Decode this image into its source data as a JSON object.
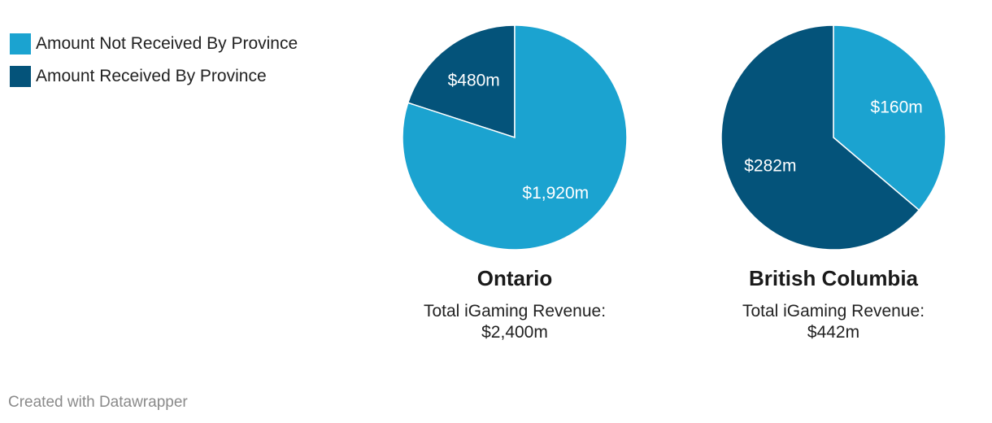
{
  "colors": {
    "not_received": "#1ba3d0",
    "received": "#04537a"
  },
  "legend": {
    "items": [
      {
        "label": "Amount Not Received By Province",
        "color": "#1ba3d0"
      },
      {
        "label": "Amount Received By Province",
        "color": "#04537a"
      }
    ]
  },
  "chart_data": [
    {
      "type": "pie",
      "title": "Ontario",
      "subtitle_line1": "Total iGaming Revenue:",
      "subtitle_line2": "$2,400m",
      "slices": [
        {
          "name": "Amount Received By Province",
          "value": 480,
          "label": "$480m",
          "color": "#04537a"
        },
        {
          "name": "Amount Not Received By Province",
          "value": 1920,
          "label": "$1,920m",
          "color": "#1ba3d0"
        }
      ]
    },
    {
      "type": "pie",
      "title": "British Columbia",
      "subtitle_line1": "Total iGaming Revenue:",
      "subtitle_line2": "$442m",
      "slices": [
        {
          "name": "Amount Not Received By Province",
          "value": 160,
          "label": "$160m",
          "color": "#1ba3d0"
        },
        {
          "name": "Amount Received By Province",
          "value": 282,
          "label": "$282m",
          "color": "#04537a"
        }
      ]
    }
  ],
  "footer": {
    "credit": "Created with Datawrapper"
  }
}
